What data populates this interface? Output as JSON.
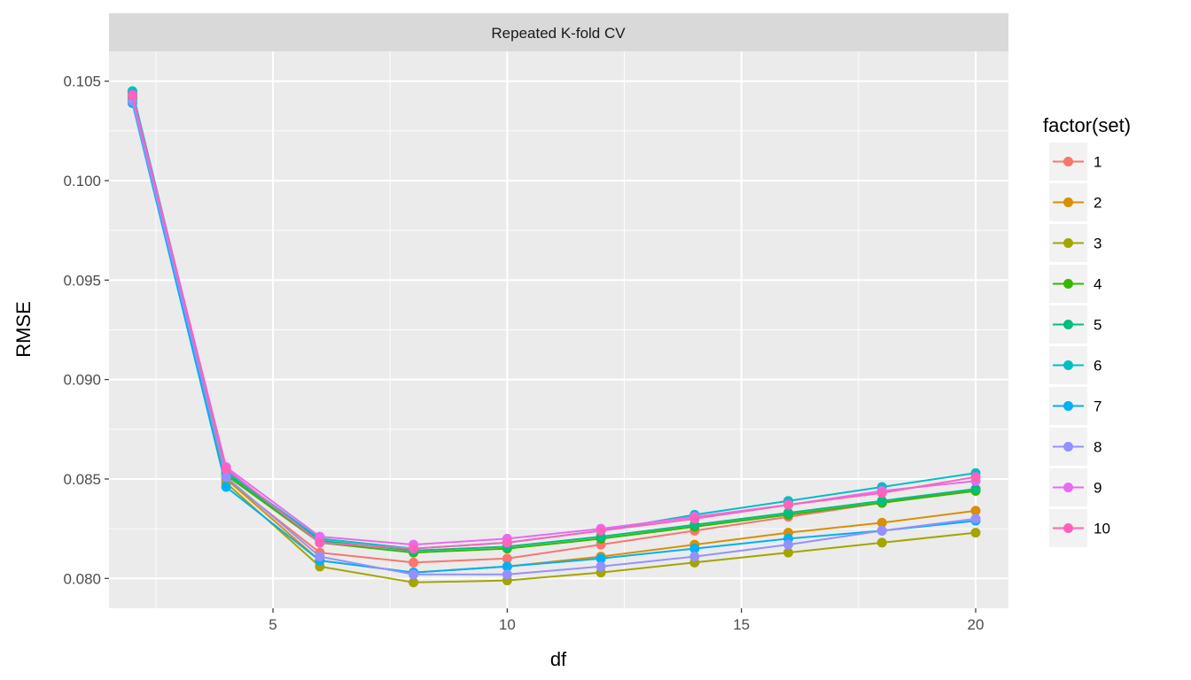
{
  "chart_data": {
    "type": "line",
    "facet_label": "Repeated K-fold CV",
    "xlabel": "df",
    "ylabel": "RMSE",
    "xlim": [
      1.5,
      20.7
    ],
    "ylim": [
      0.0785,
      0.1065
    ],
    "x_ticks": [
      5,
      10,
      15,
      20
    ],
    "x_tick_labels": [
      "5",
      "10",
      "15",
      "20"
    ],
    "y_ticks": [
      0.08,
      0.085,
      0.09,
      0.095,
      0.1,
      0.105
    ],
    "y_tick_labels": [
      "0.080",
      "0.085",
      "0.090",
      "0.095",
      "0.100",
      "0.105"
    ],
    "grid": true,
    "legend": {
      "title": "factor(set)",
      "position": "right"
    },
    "x": [
      2,
      4,
      6,
      8,
      10,
      12,
      14,
      16,
      18,
      20
    ],
    "series": [
      {
        "name": "1",
        "color": "#F8766D",
        "values": [
          0.104,
          0.085,
          0.0813,
          0.0808,
          0.081,
          0.0817,
          0.0824,
          0.0831,
          0.0838,
          0.0845
        ]
      },
      {
        "name": "2",
        "color": "#D89000",
        "values": [
          0.104,
          0.085,
          0.0809,
          0.0803,
          0.0806,
          0.0811,
          0.0817,
          0.0823,
          0.0828,
          0.0834
        ]
      },
      {
        "name": "3",
        "color": "#A3A500",
        "values": [
          0.1041,
          0.0848,
          0.0806,
          0.0798,
          0.0799,
          0.0803,
          0.0808,
          0.0813,
          0.0818,
          0.0823
        ]
      },
      {
        "name": "4",
        "color": "#39B600",
        "values": [
          0.1042,
          0.0852,
          0.0818,
          0.0813,
          0.0815,
          0.082,
          0.0826,
          0.0832,
          0.0838,
          0.0844
        ]
      },
      {
        "name": "5",
        "color": "#00BF7D",
        "values": [
          0.1044,
          0.0853,
          0.0819,
          0.0814,
          0.0816,
          0.0821,
          0.0827,
          0.0833,
          0.0839,
          0.0845
        ]
      },
      {
        "name": "6",
        "color": "#00BFC4",
        "values": [
          0.1045,
          0.0854,
          0.082,
          0.0815,
          0.0818,
          0.0824,
          0.0832,
          0.0839,
          0.0846,
          0.0853
        ]
      },
      {
        "name": "7",
        "color": "#00B0F6",
        "values": [
          0.1039,
          0.0846,
          0.0809,
          0.0803,
          0.0806,
          0.081,
          0.0815,
          0.082,
          0.0824,
          0.0829
        ]
      },
      {
        "name": "8",
        "color": "#9590FF",
        "values": [
          0.104,
          0.0851,
          0.0811,
          0.0802,
          0.0802,
          0.0806,
          0.0811,
          0.0817,
          0.0824,
          0.083
        ]
      },
      {
        "name": "9",
        "color": "#E76BF3",
        "values": [
          0.1043,
          0.0856,
          0.0821,
          0.0817,
          0.082,
          0.0825,
          0.0831,
          0.0837,
          0.0844,
          0.0849
        ]
      },
      {
        "name": "10",
        "color": "#FF62BC",
        "values": [
          0.1043,
          0.0855,
          0.0818,
          0.0815,
          0.0818,
          0.0824,
          0.083,
          0.0837,
          0.0843,
          0.0851
        ]
      }
    ]
  }
}
